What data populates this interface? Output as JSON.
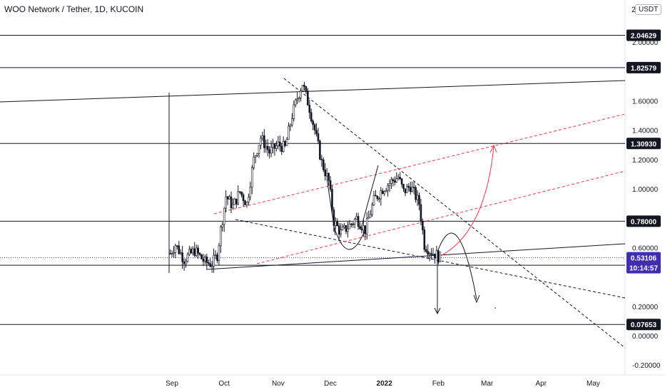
{
  "header": {
    "title": "WOO Network / Tether, 1D, KUCOIN",
    "currency_button": "USDT",
    "axis_top_digit": "2"
  },
  "chart_data": {
    "type": "candlestick",
    "symbol": "WOO/USDT",
    "interval": "1D",
    "exchange": "KUCOIN",
    "ylim": [
      -0.22,
      2.1
    ],
    "y_ticks": [
      "2.00000",
      "1.60000",
      "1.40000",
      "1.20000",
      "1.00000",
      "0.60000",
      "0.20000",
      "0.00000",
      "-0.20000"
    ],
    "x_ticks": [
      "Sep",
      "Oct",
      "Nov",
      "Dec",
      "2022",
      "Feb",
      "Mar",
      "Apr",
      "May"
    ],
    "horizontal_levels": [
      {
        "label": "2.04629",
        "value": 2.04629
      },
      {
        "label": "1.82579",
        "value": 1.82579
      },
      {
        "label": "1.30930",
        "value": 1.3093
      },
      {
        "label": "0.78000",
        "value": 0.78
      },
      {
        "label": "0.47984",
        "value": 0.47984
      },
      {
        "label": "0.07653",
        "value": 0.07653
      }
    ],
    "current_price": {
      "label": "0.53106",
      "value": 0.53106,
      "countdown": "10:14:57",
      "color": "#3d2fb0"
    },
    "candles_close_path": [
      [
        "2021-08-31",
        0.56
      ],
      [
        "2021-09-03",
        0.62
      ],
      [
        "2021-09-08",
        0.52
      ],
      [
        "2021-09-14",
        0.58
      ],
      [
        "2021-09-20",
        0.5
      ],
      [
        "2021-09-24",
        0.49
      ],
      [
        "2021-09-27",
        0.55
      ],
      [
        "2021-09-29",
        0.72
      ],
      [
        "2021-10-02",
        0.95
      ],
      [
        "2021-10-06",
        0.88
      ],
      [
        "2021-10-10",
        0.98
      ],
      [
        "2021-10-14",
        0.9
      ],
      [
        "2021-10-18",
        1.2
      ],
      [
        "2021-10-22",
        1.35
      ],
      [
        "2021-10-27",
        1.25
      ],
      [
        "2021-11-01",
        1.3
      ],
      [
        "2021-11-05",
        1.28
      ],
      [
        "2021-11-09",
        1.5
      ],
      [
        "2021-11-12",
        1.62
      ],
      [
        "2021-11-15",
        1.72
      ],
      [
        "2021-11-19",
        1.55
      ],
      [
        "2021-11-22",
        1.4
      ],
      [
        "2021-11-26",
        1.18
      ],
      [
        "2021-11-30",
        1.05
      ],
      [
        "2021-12-03",
        0.78
      ],
      [
        "2021-12-07",
        0.7
      ],
      [
        "2021-12-11",
        0.74
      ],
      [
        "2021-12-16",
        0.8
      ],
      [
        "2021-12-21",
        0.72
      ],
      [
        "2021-12-26",
        0.92
      ],
      [
        "2021-12-31",
        1.0
      ],
      [
        "2022-01-05",
        1.05
      ],
      [
        "2022-01-09",
        1.08
      ],
      [
        "2022-01-12",
        0.98
      ],
      [
        "2022-01-16",
        1.02
      ],
      [
        "2022-01-21",
        0.9
      ],
      [
        "2022-01-24",
        0.62
      ],
      [
        "2022-01-27",
        0.58
      ],
      [
        "2022-01-31",
        0.55
      ],
      [
        "2022-02-02",
        0.53
      ]
    ],
    "grid": false,
    "annotations": "hand-drawn trendlines, dashed channel lines, projected price paths with arrows"
  }
}
